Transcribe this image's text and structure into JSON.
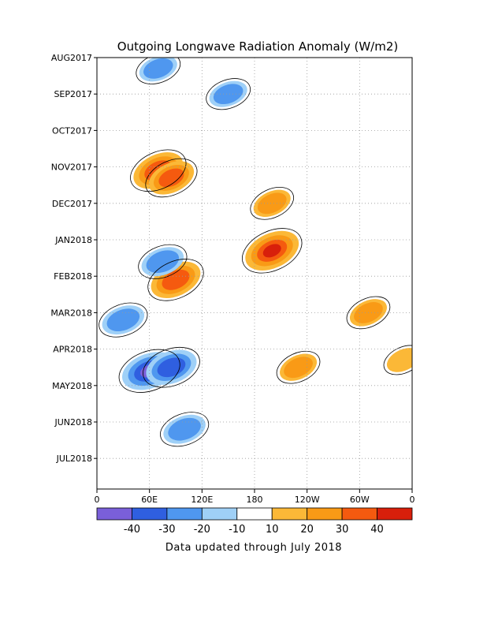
{
  "chart_data": {
    "type": "heatmap",
    "title": "Outgoing Longwave Radiation Anomaly (W/m2)",
    "xlabel": "",
    "ylabel": "",
    "x_ticks": [
      "0",
      "60E",
      "120E",
      "180",
      "120W",
      "60W",
      "0"
    ],
    "y_ticks": [
      "AUG2017",
      "SEP2017",
      "OCT2017",
      "NOV2017",
      "DEC2017",
      "JAN2018",
      "FEB2018",
      "MAR2018",
      "APR2018",
      "MAY2018",
      "JUN2018",
      "JUL2018"
    ],
    "x_range": [
      0,
      360
    ],
    "y_range": [
      "AUG2017",
      "JUL2018"
    ],
    "grid": true,
    "colorbar": {
      "levels": [
        -40,
        -30,
        -20,
        -10,
        10,
        20,
        30,
        40
      ],
      "labels": [
        "-40",
        "-30",
        "-20",
        "-10",
        "10",
        "20",
        "30",
        "40"
      ],
      "colors": [
        "#7a5fd9",
        "#2f5fe0",
        "#4f97ef",
        "#9fd0f7",
        "#ffffff",
        "#fbb837",
        "#f99a16",
        "#f55a0f",
        "#d81f0b"
      ]
    },
    "features": [
      {
        "lon": 70,
        "time": 3.1,
        "value": 35
      },
      {
        "lon": 85,
        "time": 3.3,
        "value": 30
      },
      {
        "lon": 200,
        "time": 5.3,
        "value": 40
      },
      {
        "lon": 90,
        "time": 6.1,
        "value": 35
      },
      {
        "lon": 200,
        "time": 4.0,
        "value": 20
      },
      {
        "lon": 230,
        "time": 8.5,
        "value": 20
      },
      {
        "lon": 60,
        "time": 8.6,
        "value": -40
      },
      {
        "lon": 85,
        "time": 8.5,
        "value": -35
      },
      {
        "lon": 75,
        "time": 5.6,
        "value": -25
      },
      {
        "lon": 30,
        "time": 7.2,
        "value": -25
      },
      {
        "lon": 150,
        "time": 1.0,
        "value": -20
      },
      {
        "lon": 70,
        "time": 0.3,
        "value": -20
      },
      {
        "lon": 310,
        "time": 7.0,
        "value": 20
      },
      {
        "lon": 350,
        "time": 8.3,
        "value": 15
      },
      {
        "lon": 100,
        "time": 10.2,
        "value": -25
      }
    ]
  },
  "footer": {
    "note": "Data updated through July 2018"
  }
}
